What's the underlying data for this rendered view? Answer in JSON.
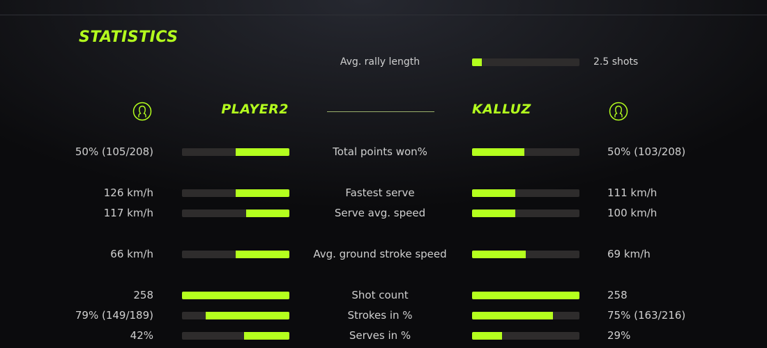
{
  "title": "STATISTICS",
  "accent": "#b4ff1e",
  "rally": {
    "label": "Avg. rally length",
    "value": "2.5 shots",
    "fill": 0.09
  },
  "players": {
    "left": {
      "name": "PLAYER2",
      "icon": "user-circle-icon"
    },
    "right": {
      "name": "KALLUZ",
      "icon": "user-circle-icon"
    }
  },
  "stats": [
    {
      "label": "Total points won%",
      "left": "50% (105/208)",
      "right": "50% (103/208)",
      "left_fill": 0.5,
      "right_fill": 0.49
    },
    {
      "label": "Fastest serve",
      "left": "126 km/h",
      "right": "111 km/h",
      "left_fill": 0.5,
      "right_fill": 0.4
    },
    {
      "label": "Serve avg. speed",
      "left": "117 km/h",
      "right": "100 km/h",
      "left_fill": 0.4,
      "right_fill": 0.4
    },
    {
      "label": "Avg. ground stroke speed",
      "left": "66 km/h",
      "right": "69 km/h",
      "left_fill": 0.5,
      "right_fill": 0.5
    },
    {
      "label": "Shot count",
      "left": "258",
      "right": "258",
      "left_fill": 1,
      "right_fill": 1
    },
    {
      "label": "Strokes in %",
      "left": "79% (149/189)",
      "right": "75% (163/216)",
      "left_fill": 0.78,
      "right_fill": 0.75
    },
    {
      "label": "Serves in %",
      "left": "42%",
      "right": "29%",
      "left_fill": 0.42,
      "right_fill": 0.28
    }
  ]
}
